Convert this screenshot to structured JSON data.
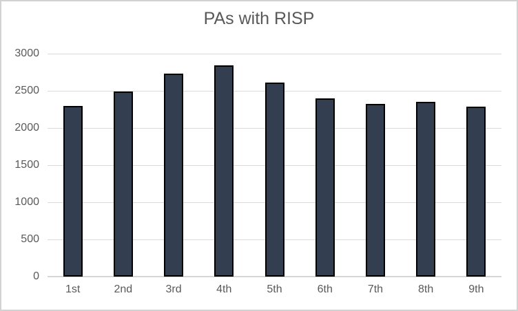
{
  "chart_data": {
    "type": "bar",
    "title": "PAs with RISP",
    "categories": [
      "1st",
      "2nd",
      "3rd",
      "4th",
      "5th",
      "6th",
      "7th",
      "8th",
      "9th"
    ],
    "values": [
      2300,
      2490,
      2730,
      2840,
      2610,
      2400,
      2320,
      2350,
      2290
    ],
    "xlabel": "",
    "ylabel": "",
    "ylim": [
      0,
      3000
    ],
    "ytick_interval": 500,
    "yticks": [
      0,
      500,
      1000,
      1500,
      2000,
      2500,
      3000
    ],
    "grid": true,
    "legend_position": "none",
    "colors": {
      "bar_fill": "#333F50",
      "bar_border": "#000000",
      "gridline": "#D9D9D9",
      "axis_line": "#D6D6D6",
      "axis_text": "#595959",
      "title_text": "#595959",
      "background": "#FFFFFF",
      "frame_border": "#D2D2D2"
    }
  }
}
